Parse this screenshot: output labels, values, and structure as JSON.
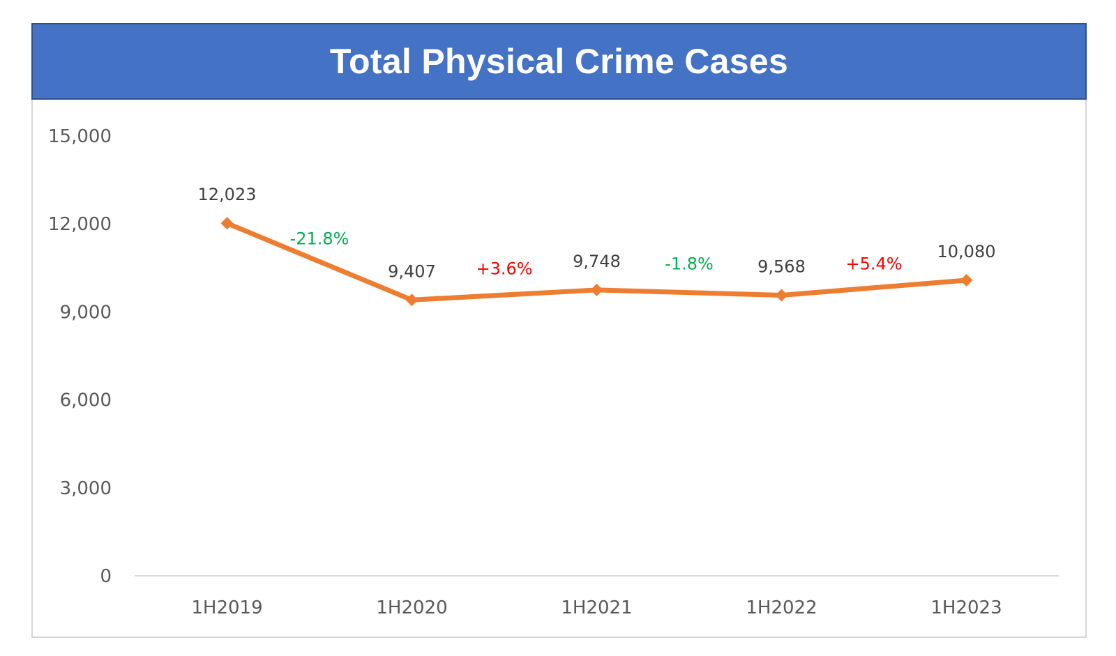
{
  "chart_data": {
    "type": "line",
    "title": "Total Physical Crime Cases",
    "categories": [
      "1H2019",
      "1H2020",
      "1H2021",
      "1H2022",
      "1H2023"
    ],
    "series": [
      {
        "values": [
          12023,
          9407,
          9748,
          9568,
          10080
        ],
        "value_labels": [
          "12,023",
          "9,407",
          "9,748",
          "9,568",
          "10,080"
        ],
        "color": "#ed7d31",
        "marker": "diamond"
      }
    ],
    "change_labels": [
      {
        "text": "-21.8%",
        "color": "#00b050"
      },
      {
        "text": "+3.6%",
        "color": "#ff0000"
      },
      {
        "text": "-1.8%",
        "color": "#00b050"
      },
      {
        "text": "+5.4%",
        "color": "#ff0000"
      }
    ],
    "y_ticks": [
      0,
      3000,
      6000,
      9000,
      12000,
      15000
    ],
    "y_tick_labels": [
      "0",
      "3,000",
      "6,000",
      "9,000",
      "12,000",
      "15,000"
    ],
    "ylim": [
      0,
      15000
    ],
    "grid": false,
    "legend": "none",
    "title_bar_color": "#4472c4"
  }
}
